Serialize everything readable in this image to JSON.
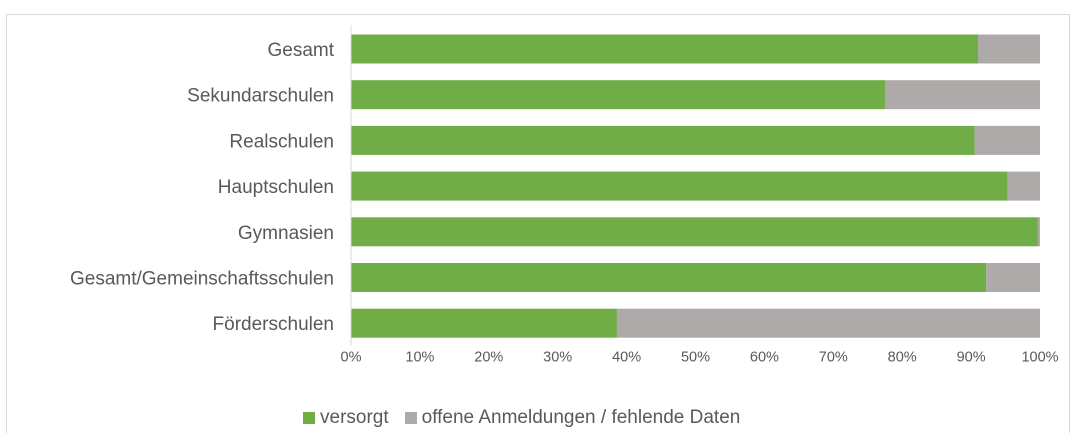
{
  "colors": {
    "versorgt": "#70ad47",
    "offen": "#aeaaaa",
    "text": "#595959",
    "axis": "#d9d9d9"
  },
  "legend": {
    "items": [
      {
        "label": "versorgt",
        "color": "#70ad47"
      },
      {
        "label": "offene Anmeldungen / fehlende Daten",
        "color": "#aeaaaa"
      }
    ]
  },
  "chart_data": {
    "type": "bar",
    "orientation": "horizontal",
    "stacked": true,
    "categories": [
      "Gesamt",
      "Sekundarschulen",
      "Realschulen",
      "Hauptschulen",
      "Gymnasien",
      "Gesamt/Gemeinschaftsschulen",
      "Förderschulen"
    ],
    "series": [
      {
        "name": "versorgt",
        "values": [
          91,
          77.5,
          90.5,
          95.3,
          99.7,
          92.2,
          38.6
        ]
      },
      {
        "name": "offene Anmeldungen / fehlende Daten",
        "values": [
          9,
          22.5,
          9.5,
          4.7,
          0.3,
          7.8,
          61.4
        ]
      }
    ],
    "xlim": [
      0,
      100
    ],
    "xticks": [
      "0%",
      "10%",
      "20%",
      "30%",
      "40%",
      "50%",
      "60%",
      "70%",
      "80%",
      "90%",
      "100%"
    ],
    "grid": false,
    "legend_position": "bottom"
  }
}
